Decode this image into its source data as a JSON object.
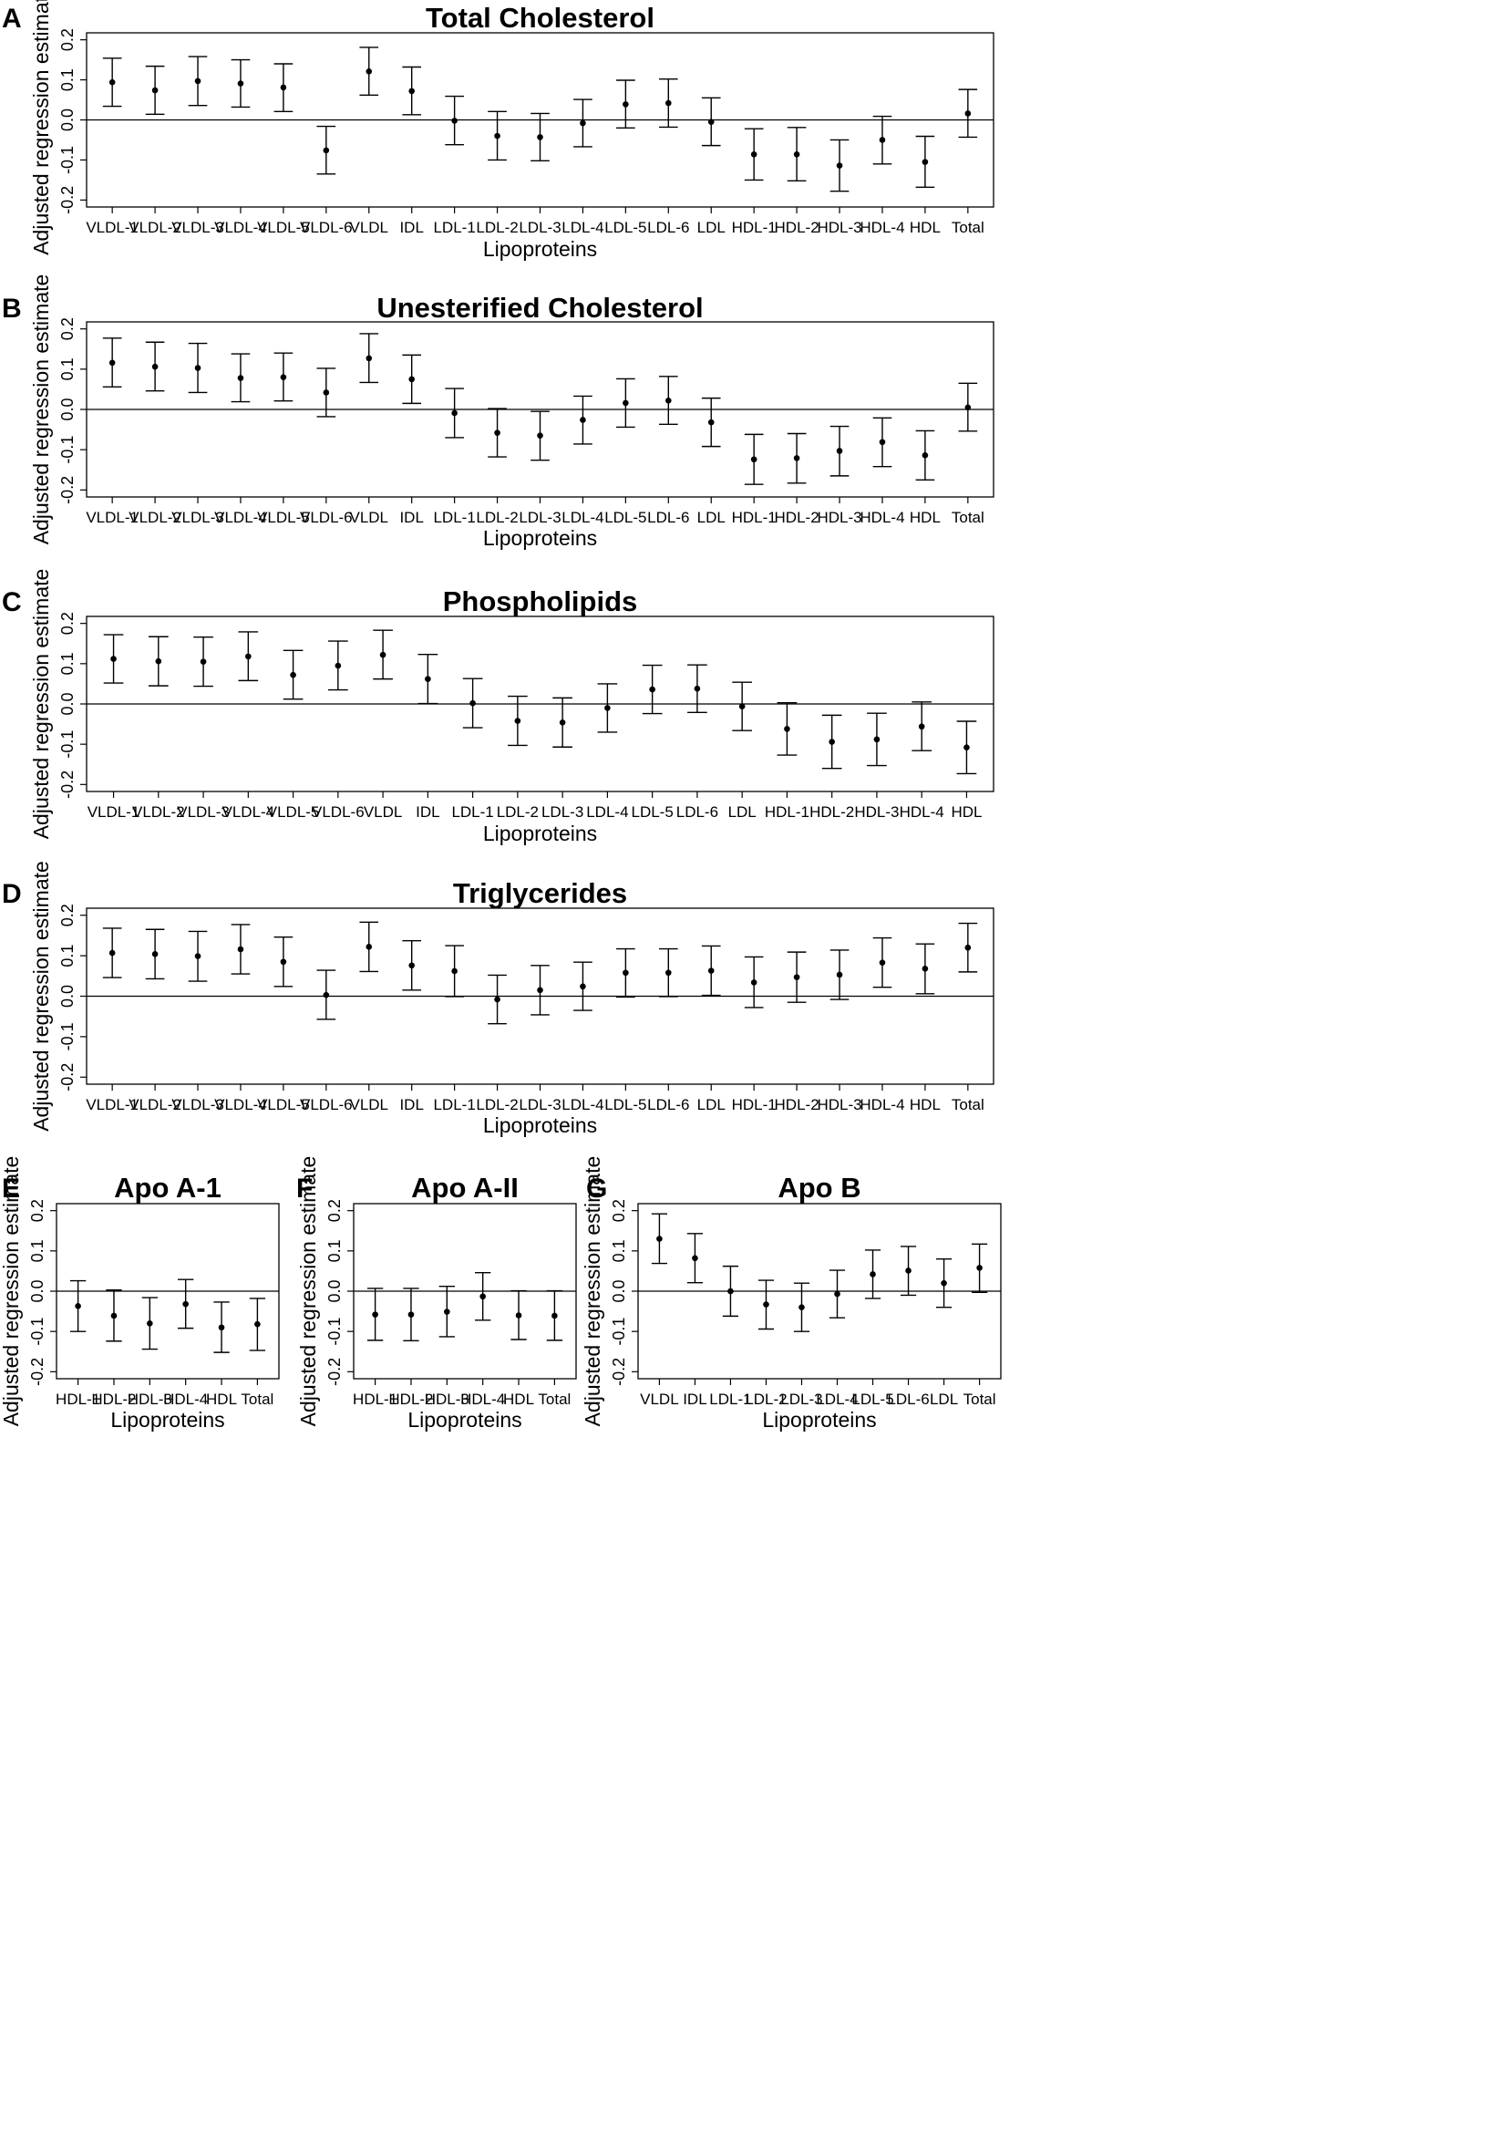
{
  "chart_data": [
    {
      "panel": "A",
      "type": "errorbar",
      "title": "Total Cholesterol",
      "xlabel": "Lipoproteins",
      "ylabel": "Adjusted regression estimate",
      "ylim": [
        -0.2,
        0.2
      ],
      "yticks": [
        "-0.2",
        "-0.1",
        "0.0",
        "0.1",
        "0.2"
      ],
      "categories": [
        "VLDL-1",
        "VLDL-2",
        "VLDL-3",
        "VLDL-4",
        "VLDL-5",
        "VLDL-6",
        "VLDL",
        "IDL",
        "LDL-1",
        "LDL-2",
        "LDL-3",
        "LDL-4",
        "LDL-5",
        "LDL-6",
        "LDL",
        "HDL-1",
        "HDL-2",
        "HDL-3",
        "HDL-4",
        "HDL",
        "Total"
      ],
      "estimates": [
        0.094,
        0.074,
        0.097,
        0.091,
        0.081,
        -0.076,
        0.121,
        0.072,
        -0.002,
        -0.04,
        -0.043,
        -0.008,
        0.039,
        0.042,
        -0.005,
        -0.086,
        -0.086,
        -0.114,
        -0.05,
        -0.105,
        0.016
      ],
      "lower": [
        0.034,
        0.014,
        0.036,
        0.032,
        0.021,
        -0.135,
        0.062,
        0.013,
        -0.062,
        -0.1,
        -0.102,
        -0.067,
        -0.02,
        -0.018,
        -0.064,
        -0.15,
        -0.152,
        -0.178,
        -0.11,
        -0.168,
        -0.043
      ],
      "upper": [
        0.154,
        0.134,
        0.158,
        0.15,
        0.14,
        -0.016,
        0.181,
        0.132,
        0.059,
        0.021,
        0.016,
        0.051,
        0.099,
        0.102,
        0.055,
        -0.022,
        -0.019,
        -0.05,
        0.009,
        -0.041,
        0.076
      ]
    },
    {
      "panel": "B",
      "type": "errorbar",
      "title": "Unesterified Cholesterol",
      "xlabel": "Lipoproteins",
      "ylabel": "Adjusted regression estimate",
      "ylim": [
        -0.2,
        0.2
      ],
      "yticks": [
        "-0.2",
        "-0.1",
        "0.0",
        "0.1",
        "0.2"
      ],
      "categories": [
        "VLDL-1",
        "VLDL-2",
        "VLDL-3",
        "VLDL-4",
        "VLDL-5",
        "VLDL-6",
        "VLDL",
        "IDL",
        "LDL-1",
        "LDL-2",
        "LDL-3",
        "LDL-4",
        "LDL-5",
        "LDL-6",
        "LDL",
        "HDL-1",
        "HDL-2",
        "HDL-3",
        "HDL-4",
        "HDL",
        "Total"
      ],
      "estimates": [
        0.116,
        0.106,
        0.103,
        0.078,
        0.08,
        0.042,
        0.127,
        0.075,
        -0.009,
        -0.058,
        -0.065,
        -0.026,
        0.016,
        0.022,
        -0.032,
        -0.124,
        -0.121,
        -0.103,
        -0.081,
        -0.114,
        0.005
      ],
      "lower": [
        0.056,
        0.046,
        0.042,
        0.019,
        0.021,
        -0.018,
        0.067,
        0.015,
        -0.07,
        -0.118,
        -0.126,
        -0.086,
        -0.044,
        -0.037,
        -0.092,
        -0.186,
        -0.183,
        -0.165,
        -0.142,
        -0.175,
        -0.054
      ],
      "upper": [
        0.177,
        0.167,
        0.164,
        0.138,
        0.14,
        0.102,
        0.188,
        0.135,
        0.052,
        0.002,
        -0.005,
        0.033,
        0.076,
        0.082,
        0.028,
        -0.062,
        -0.06,
        -0.042,
        -0.021,
        -0.053,
        0.065
      ]
    },
    {
      "panel": "C",
      "type": "errorbar",
      "title": "Phospholipids",
      "xlabel": "Lipoproteins",
      "ylabel": "Adjusted regression estimate",
      "ylim": [
        -0.2,
        0.2
      ],
      "yticks": [
        "-0.2",
        "-0.1",
        "0.0",
        "0.1",
        "0.2"
      ],
      "categories": [
        "VLDL-1",
        "VLDL-2",
        "VLDL-3",
        "VLDL-4",
        "VLDL-5",
        "VLDL-6",
        "VLDL",
        "IDL",
        "LDL-1",
        "LDL-2",
        "LDL-3",
        "LDL-4",
        "LDL-5",
        "LDL-6",
        "LDL",
        "HDL-1",
        "HDL-2",
        "HDL-3",
        "HDL-4",
        "HDL"
      ],
      "estimates": [
        0.112,
        0.106,
        0.105,
        0.118,
        0.072,
        0.095,
        0.122,
        0.062,
        0.002,
        -0.042,
        -0.046,
        -0.01,
        0.036,
        0.038,
        -0.006,
        -0.062,
        -0.094,
        -0.088,
        -0.056,
        -0.108
      ],
      "lower": [
        0.052,
        0.045,
        0.044,
        0.058,
        0.012,
        0.035,
        0.062,
        0.001,
        -0.059,
        -0.103,
        -0.107,
        -0.07,
        -0.024,
        -0.021,
        -0.066,
        -0.127,
        -0.16,
        -0.153,
        -0.116,
        -0.173
      ],
      "upper": [
        0.172,
        0.167,
        0.166,
        0.179,
        0.133,
        0.156,
        0.183,
        0.123,
        0.063,
        0.019,
        0.015,
        0.05,
        0.096,
        0.097,
        0.054,
        0.003,
        -0.028,
        -0.023,
        0.005,
        -0.043
      ]
    },
    {
      "panel": "D",
      "type": "errorbar",
      "title": "Triglycerides",
      "xlabel": "Lipoproteins",
      "ylabel": "Adjusted regression estimate",
      "ylim": [
        -0.2,
        0.2
      ],
      "yticks": [
        "-0.2",
        "-0.1",
        "0.0",
        "0.1",
        "0.2"
      ],
      "categories": [
        "VLDL-1",
        "VLDL-2",
        "VLDL-3",
        "VLDL-4",
        "VLDL-5",
        "VLDL-6",
        "VLDL",
        "IDL",
        "LDL-1",
        "LDL-2",
        "LDL-3",
        "LDL-4",
        "LDL-5",
        "LDL-6",
        "LDL",
        "HDL-1",
        "HDL-2",
        "HDL-3",
        "HDL-4",
        "HDL",
        "Total"
      ],
      "estimates": [
        0.107,
        0.104,
        0.099,
        0.116,
        0.085,
        0.003,
        0.122,
        0.076,
        0.062,
        -0.008,
        0.015,
        0.024,
        0.058,
        0.058,
        0.063,
        0.034,
        0.047,
        0.053,
        0.083,
        0.068,
        0.12
      ],
      "lower": [
        0.046,
        0.043,
        0.037,
        0.055,
        0.024,
        -0.057,
        0.061,
        0.015,
        -0.001,
        -0.068,
        -0.046,
        -0.035,
        -0.002,
        -0.001,
        0.002,
        -0.028,
        -0.015,
        -0.008,
        0.022,
        0.006,
        0.06
      ],
      "upper": [
        0.168,
        0.165,
        0.16,
        0.177,
        0.146,
        0.064,
        0.183,
        0.137,
        0.125,
        0.052,
        0.076,
        0.084,
        0.117,
        0.117,
        0.124,
        0.097,
        0.109,
        0.114,
        0.144,
        0.129,
        0.18
      ]
    },
    {
      "panel": "E",
      "type": "errorbar",
      "title": "Apo A-1",
      "xlabel": "Lipoproteins",
      "ylabel": "Adjusted regression estimate",
      "ylim": [
        -0.2,
        0.2
      ],
      "yticks": [
        "-0.2",
        "-0.1",
        "0.0",
        "0.1",
        "0.2"
      ],
      "categories": [
        "HDL-1",
        "HDL-2",
        "HDL-3",
        "HDL-4",
        "HDL",
        "Total"
      ],
      "estimates": [
        -0.037,
        -0.061,
        -0.08,
        -0.032,
        -0.09,
        -0.082
      ],
      "lower": [
        -0.1,
        -0.124,
        -0.144,
        -0.092,
        -0.152,
        -0.147
      ],
      "upper": [
        0.026,
        0.003,
        -0.016,
        0.029,
        -0.027,
        -0.018
      ]
    },
    {
      "panel": "F",
      "type": "errorbar",
      "title": "Apo A-II",
      "xlabel": "Lipoproteins",
      "ylabel": "Adjusted regression estimate",
      "ylim": [
        -0.2,
        0.2
      ],
      "yticks": [
        "-0.2",
        "-0.1",
        "0.0",
        "0.1",
        "0.2"
      ],
      "categories": [
        "HDL-1",
        "HDL-2",
        "HDL-3",
        "HDL-4",
        "HDL",
        "Total"
      ],
      "estimates": [
        -0.058,
        -0.058,
        -0.051,
        -0.013,
        -0.06,
        -0.061
      ],
      "lower": [
        -0.122,
        -0.123,
        -0.113,
        -0.072,
        -0.12,
        -0.122
      ],
      "upper": [
        0.007,
        0.007,
        0.012,
        0.046,
        0.001,
        0.001
      ]
    },
    {
      "panel": "G",
      "type": "errorbar",
      "title": "Apo B",
      "xlabel": "Lipoproteins",
      "ylabel": "Adjusted regression estimate",
      "ylim": [
        -0.2,
        0.2
      ],
      "yticks": [
        "-0.2",
        "-0.1",
        "0.0",
        "0.1",
        "0.2"
      ],
      "categories": [
        "VLDL",
        "IDL",
        "LDL-1",
        "LDL-2",
        "LDL-3",
        "LDL-4",
        "LDL-5",
        "LDL-6",
        "LDL",
        "Total"
      ],
      "estimates": [
        0.13,
        0.082,
        0.0,
        -0.033,
        -0.04,
        -0.007,
        0.042,
        0.051,
        0.02,
        0.058
      ],
      "lower": [
        0.069,
        0.021,
        -0.062,
        -0.094,
        -0.1,
        -0.066,
        -0.018,
        -0.01,
        -0.04,
        -0.003
      ],
      "upper": [
        0.192,
        0.143,
        0.062,
        0.027,
        0.02,
        0.052,
        0.102,
        0.111,
        0.08,
        0.117
      ]
    }
  ]
}
